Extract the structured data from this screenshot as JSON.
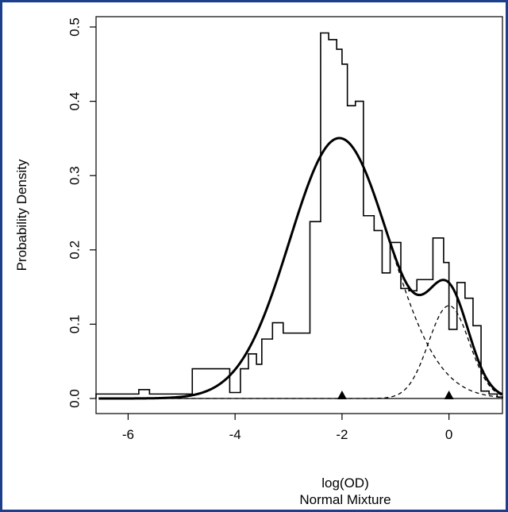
{
  "chart_data": {
    "type": "line",
    "title": "",
    "xlabel": "log(OD)",
    "subtitle": "Normal Mixture",
    "ylabel": "Probability Density",
    "xlim": [
      -6.6,
      1.0
    ],
    "ylim": [
      0.0,
      0.5
    ],
    "x_ticks": [
      -6,
      -4,
      -2,
      0
    ],
    "y_ticks": [
      0.0,
      0.1,
      0.2,
      0.3,
      0.4,
      0.5
    ],
    "grid": false,
    "histogram": {
      "name": "",
      "bin_edges": [
        -6.6,
        -5.8,
        -5.6,
        -5.0,
        -4.8,
        -4.1,
        -3.9,
        -3.75,
        -3.6,
        -3.5,
        -3.3,
        -3.1,
        -2.6,
        -2.4,
        -2.25,
        -2.1,
        -2.0,
        -1.9,
        -1.75,
        -1.6,
        -1.4,
        -1.25,
        -1.1,
        -0.9,
        -0.75,
        -0.6,
        -0.4,
        -0.3,
        -0.1,
        0.0,
        0.15,
        0.3,
        0.45,
        0.6,
        0.75,
        0.9,
        1.0
      ],
      "density": [
        0.006,
        0.012,
        0.006,
        0.006,
        0.04,
        0.008,
        0.04,
        0.06,
        0.046,
        0.08,
        0.102,
        0.088,
        0.238,
        0.492,
        0.483,
        0.47,
        0.45,
        0.394,
        0.4,
        0.246,
        0.226,
        0.169,
        0.21,
        0.148,
        0.145,
        0.16,
        0.16,
        0.216,
        0.183,
        0.093,
        0.156,
        0.135,
        0.098,
        0.01,
        0.006,
        0.002
      ]
    },
    "components": [
      {
        "name": "",
        "mean": -2.05,
        "sd": 0.93,
        "weight": 0.817
      },
      {
        "name": "",
        "mean": 0.0,
        "sd": 0.38,
        "weight": 0.119
      }
    ],
    "means_markers": [
      -2.0,
      0.0
    ],
    "colors": {
      "line": "#000000",
      "frame_border": "#1b3f8c"
    }
  }
}
